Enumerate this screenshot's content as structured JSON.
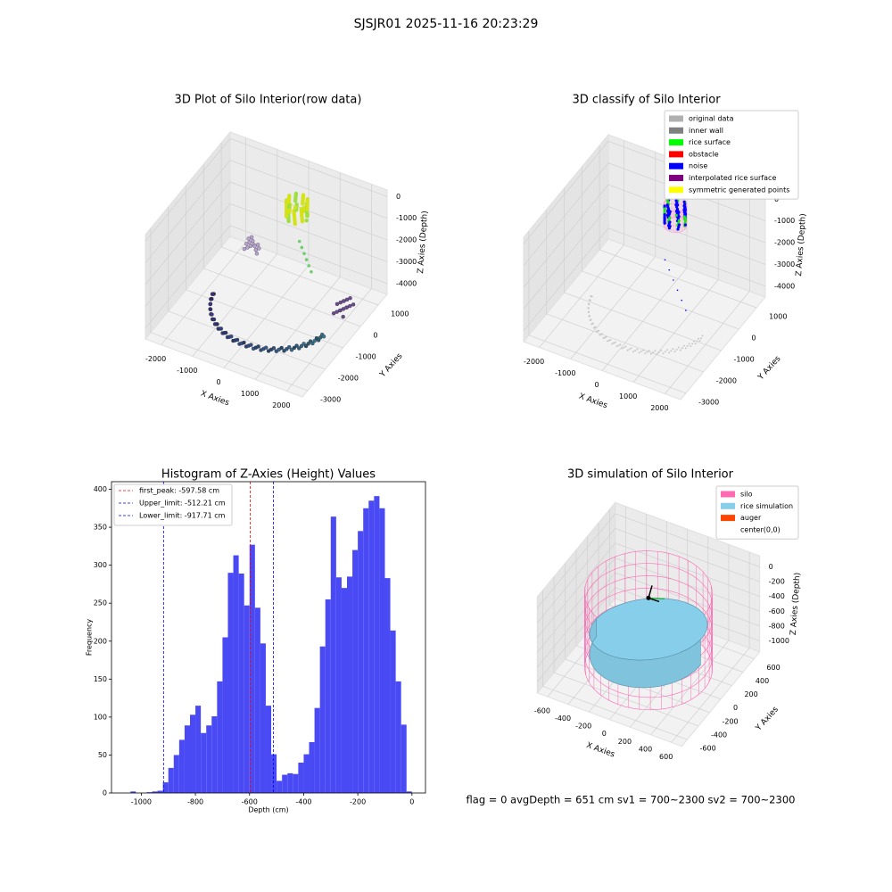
{
  "title": "SJSJR01 2025-11-16 20:23:29",
  "footer": "flag = 0     avgDepth = 651 cm  sv1 = 700~2300  sv2 = 700~2300",
  "chart_data": [
    {
      "type": "scatter3d",
      "title": "3D Plot of Silo Interior(row data)",
      "xlabel": "X Axies",
      "ylabel": "Y Axies",
      "zlabel": "Z Axies (Depth)",
      "xlim": [
        -2500,
        2500
      ],
      "ylim": [
        -3300,
        1500
      ],
      "zlim": [
        -4500,
        300
      ],
      "xticks": [
        -2000,
        -1000,
        0,
        1000,
        2000
      ],
      "yticks": [
        1000,
        0,
        -1000,
        -2000,
        -3000
      ],
      "zticks": [
        0,
        -1000,
        -2000,
        -3000,
        -4000
      ]
    },
    {
      "type": "scatter3d",
      "title": "3D classify of Silo Interior",
      "xlabel": "X Axies",
      "ylabel": "Y Axies",
      "zlabel": "Z Axies (Depth)",
      "xlim": [
        -2500,
        2500
      ],
      "ylim": [
        -3300,
        1500
      ],
      "zlim": [
        -4500,
        300
      ],
      "xticks": [
        -2000,
        -1000,
        0,
        1000,
        2000
      ],
      "yticks": [
        1000,
        0,
        -1000,
        -2000,
        -3000
      ],
      "zticks": [
        0,
        -1000,
        -2000,
        -3000,
        -4000
      ],
      "legend": [
        {
          "name": "original data",
          "color": "#b0b0b0"
        },
        {
          "name": "inner wall",
          "color": "#808080"
        },
        {
          "name": "rice surface",
          "color": "#00ff00"
        },
        {
          "name": "obstacle",
          "color": "#ff0000"
        },
        {
          "name": "noise",
          "color": "#0000ff"
        },
        {
          "name": "interpolated rice surface",
          "color": "#800080"
        },
        {
          "name": "symmetric generated points",
          "color": "#ffff00"
        }
      ]
    },
    {
      "type": "histogram",
      "title": "Histogram of Z-Axies (Height) Values",
      "xlabel": "Depth (cm)",
      "ylabel": "Frequency",
      "color": "#4a4af5",
      "bins": [
        -1060,
        -1040,
        -1020,
        -1000,
        -980,
        -960,
        -940,
        -920,
        -900,
        -880,
        -860,
        -840,
        -820,
        -800,
        -780,
        -760,
        -740,
        -720,
        -700,
        -680,
        -660,
        -640,
        -620,
        -600,
        -580,
        -560,
        -540,
        -520,
        -500,
        -480,
        -460,
        -440,
        -420,
        -400,
        -380,
        -360,
        -340,
        -320,
        -300,
        -280,
        -260,
        -240,
        -220,
        -200,
        -180,
        -160,
        -140,
        -120,
        -100,
        -80,
        -60,
        -40,
        -20,
        0
      ],
      "counts": [
        0,
        2,
        0,
        0,
        1,
        2,
        3,
        14,
        33,
        50,
        70,
        89,
        103,
        115,
        79,
        89,
        101,
        147,
        205,
        290,
        313,
        289,
        247,
        327,
        244,
        197,
        115,
        51,
        16,
        24,
        26,
        25,
        40,
        51,
        67,
        112,
        193,
        255,
        364,
        284,
        270,
        285,
        320,
        345,
        375,
        385,
        391,
        375,
        283,
        214,
        147,
        90,
        2
      ],
      "xlim": [
        -1110,
        50
      ],
      "ylim": [
        0,
        410
      ],
      "xticks": [
        -1000,
        -800,
        -600,
        -400,
        -200,
        0
      ],
      "yticks": [
        0,
        50,
        100,
        150,
        200,
        250,
        300,
        350,
        400
      ],
      "lines": [
        {
          "label": "first_peak: -597.58 cm",
          "value": -597.58,
          "color": "#ff0000"
        },
        {
          "label": "Upper_limit: -512.21 cm",
          "value": -512.21,
          "color": "#0000ff"
        },
        {
          "label": "Lower_limit: -917.71 cm",
          "value": -917.71,
          "color": "#0000ff"
        }
      ]
    },
    {
      "type": "surface3d",
      "title": "3D simulation of Silo Interior",
      "xlabel": "X Axies",
      "ylabel": "Y Axies",
      "zlabel": "Z Axies (Depth)",
      "xlim": [
        -700,
        700
      ],
      "ylim": [
        -700,
        700
      ],
      "zlim": [
        -1150,
        150
      ],
      "xticks": [
        -600,
        -400,
        -200,
        0,
        200,
        400,
        600
      ],
      "yticks": [
        600,
        400,
        200,
        0,
        -200,
        -400,
        -600
      ],
      "zticks": [
        0,
        -200,
        -400,
        -600,
        -800,
        -1000
      ],
      "legend": [
        {
          "name": "silo",
          "color": "#ff69b4"
        },
        {
          "name": "rice simulation",
          "color": "#87ceeb"
        },
        {
          "name": "auger",
          "color": "#ff4500"
        },
        {
          "name": "center(0,0)",
          "color": "#ffffff"
        }
      ]
    }
  ]
}
